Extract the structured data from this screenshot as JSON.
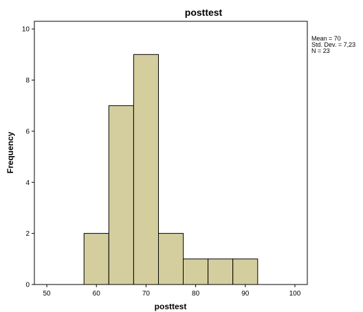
{
  "chart_data": {
    "type": "bar",
    "title": "posttest",
    "xlabel": "posttest",
    "ylabel": "Frequency",
    "xlim": [
      47.5,
      102.5
    ],
    "ylim": [
      0,
      10.3
    ],
    "x_ticks": [
      50,
      60,
      70,
      80,
      90,
      100
    ],
    "y_ticks": [
      0,
      2,
      4,
      6,
      8,
      10
    ],
    "bins": [
      {
        "start": 57.5,
        "end": 62.5,
        "count": 2
      },
      {
        "start": 62.5,
        "end": 67.5,
        "count": 7
      },
      {
        "start": 67.5,
        "end": 72.5,
        "count": 9
      },
      {
        "start": 72.5,
        "end": 77.5,
        "count": 2
      },
      {
        "start": 77.5,
        "end": 82.5,
        "count": 1
      },
      {
        "start": 82.5,
        "end": 87.5,
        "count": 1
      },
      {
        "start": 87.5,
        "end": 92.5,
        "count": 1
      }
    ],
    "stats": [
      "Mean = 70",
      "Std. Dev. = 7,23",
      "N = 23"
    ],
    "grid": false,
    "bar_color": "#d4ce9e",
    "bar_edge_color": "#000000"
  }
}
